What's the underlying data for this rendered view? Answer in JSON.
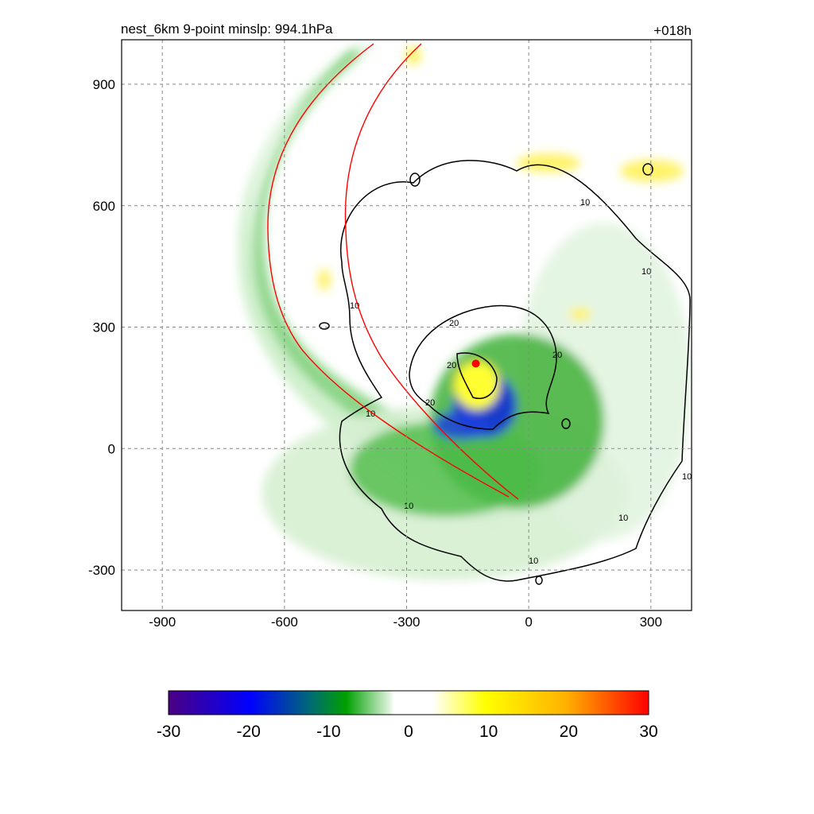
{
  "chart_data": {
    "type": "heatmap",
    "title_left": "nest_6km  9-point minslp: 994.1hPa",
    "title_right": "+018h",
    "xlim": [
      -1000,
      400
    ],
    "ylim": [
      -400,
      1010
    ],
    "x_ticks": [
      -900,
      -600,
      -300,
      0,
      300
    ],
    "y_ticks": [
      -300,
      0,
      300,
      600,
      900
    ],
    "grid": "dashed at ticks",
    "colorbar": {
      "min": -30,
      "max": 30,
      "tick_labels": [
        "-30",
        "-20",
        "-10",
        "0",
        "10",
        "20",
        "30"
      ],
      "colors": {
        "-30": "#4b0082",
        "-20": "#0000ff",
        "-12": "#00a000",
        "-4": "#dff2dc",
        "0": "#ffffff",
        "10": "#ffff00",
        "20": "#ffb000",
        "30": "#ff0000"
      }
    },
    "contour_labels": [
      "10",
      "20"
    ],
    "center_marker": {
      "x": -130,
      "y": 210,
      "color": "#ff0000"
    },
    "red_line_color": "#ff0000"
  }
}
